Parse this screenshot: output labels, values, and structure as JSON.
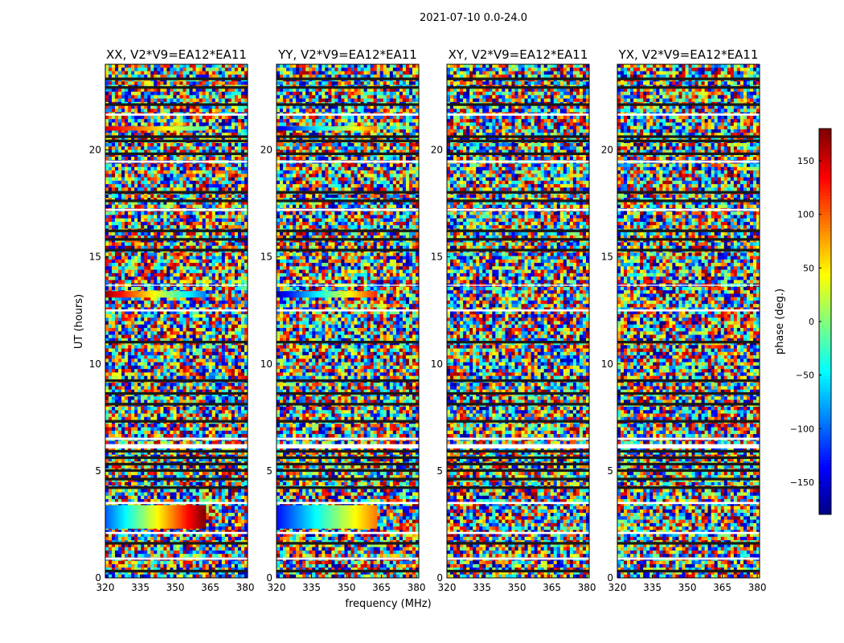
{
  "figure": {
    "suptitle": "2021-07-10 0.0-24.0",
    "xlabel": "frequency (MHz)",
    "ylabel": "UT (hours)"
  },
  "colorbar": {
    "label": "phase (deg.)",
    "range": [
      -180,
      180
    ],
    "ticks": [
      150,
      100,
      50,
      0,
      -50,
      -100,
      -150
    ],
    "tick_labels": [
      "150",
      "100",
      "50",
      "0",
      "−50",
      "−100",
      "−150"
    ],
    "colormap": "jet",
    "colors": [
      "#00007f",
      "#0000ff",
      "#007fff",
      "#00ffff",
      "#7fff7f",
      "#ffff00",
      "#ff7f00",
      "#ff0000",
      "#7f0000"
    ]
  },
  "chart_data": [
    {
      "type": "heatmap",
      "title": "XX, V2*V9=EA12*EA11",
      "xlim": [
        320,
        381
      ],
      "ylim": [
        0,
        24
      ],
      "xticks": [
        320,
        335,
        350,
        365,
        380
      ],
      "yticks": [
        0,
        5,
        10,
        15,
        20
      ],
      "ytick_labels": [
        "0",
        "5",
        "10",
        "15",
        "20"
      ],
      "value": "phase (deg.)",
      "bands": [
        {
          "t": [
            2.3,
            3.4
          ],
          "f": [
            320,
            363
          ],
          "phase": [
            -100,
            180
          ]
        },
        {
          "t": [
            13.1,
            13.4
          ],
          "f": [
            320,
            363
          ],
          "phase": [
            170,
            -90
          ]
        },
        {
          "t": [
            20.9,
            21.1
          ],
          "f": [
            320,
            363
          ],
          "phase": [
            150,
            -20
          ]
        }
      ]
    },
    {
      "type": "heatmap",
      "title": "YY, V2*V9=EA12*EA11",
      "xlim": [
        320,
        381
      ],
      "ylim": [
        0,
        24
      ],
      "xticks": [
        320,
        335,
        350,
        365,
        380
      ],
      "yticks": [
        0,
        5,
        10,
        15,
        20
      ],
      "ytick_labels": [
        "0",
        "5",
        "10",
        "15",
        "20"
      ],
      "value": "phase (deg.)",
      "bands": [
        {
          "t": [
            2.3,
            3.4
          ],
          "f": [
            320,
            363
          ],
          "phase": [
            -130,
            90
          ]
        },
        {
          "t": [
            13.1,
            13.4
          ],
          "f": [
            320,
            363
          ],
          "phase": [
            -160,
            120
          ]
        },
        {
          "t": [
            20.9,
            21.1
          ],
          "f": [
            320,
            363
          ],
          "phase": [
            -150,
            90
          ]
        }
      ]
    },
    {
      "type": "heatmap",
      "title": "XY, V2*V9=EA12*EA11",
      "xlim": [
        320,
        381
      ],
      "ylim": [
        0,
        24
      ],
      "xticks": [
        320,
        335,
        350,
        365,
        380
      ],
      "yticks": [
        0,
        5,
        10,
        15,
        20
      ],
      "ytick_labels": [
        "0",
        "5",
        "10",
        "15",
        "20"
      ],
      "value": "phase (deg.)",
      "bands": []
    },
    {
      "type": "heatmap",
      "title": "YX, V2*V9=EA12*EA11",
      "xlim": [
        320,
        381
      ],
      "ylim": [
        0,
        24
      ],
      "xticks": [
        320,
        335,
        350,
        365,
        380
      ],
      "yticks": [
        0,
        5,
        10,
        15,
        20
      ],
      "ytick_labels": [
        "0",
        "5",
        "10",
        "15",
        "20"
      ],
      "value": "phase (deg.)",
      "bands": []
    }
  ]
}
